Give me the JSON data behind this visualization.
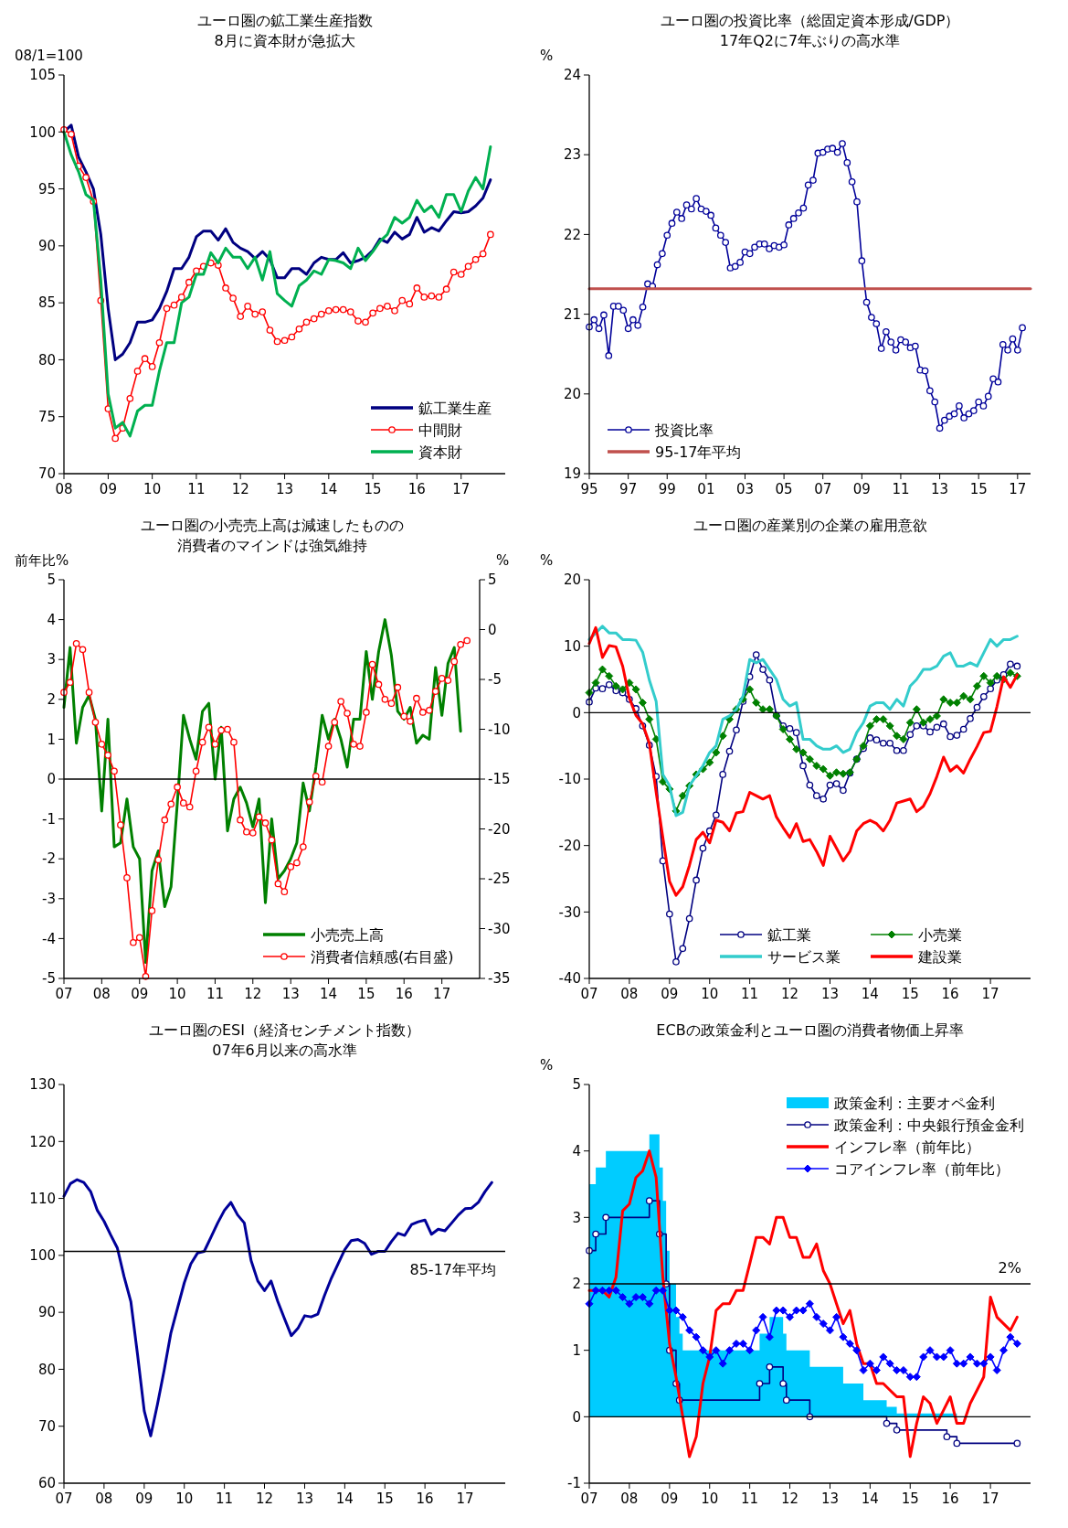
{
  "chart_data": [
    {
      "type": "line",
      "title": "ユーロ圏の鉱工業生産指数",
      "subtitle": "8月に資本財が急拡大",
      "ylabel": "08/1=100",
      "xlim": [
        "2008-01",
        "2018-01"
      ],
      "ylim": [
        70,
        105
      ],
      "yticks": [
        70,
        75,
        80,
        85,
        90,
        95,
        100,
        105
      ],
      "xticks": [
        {
          "value": "2008-01",
          "label": "08"
        },
        {
          "value": "2009-01",
          "label": "09"
        },
        {
          "value": "2010-01",
          "label": "10"
        },
        {
          "value": "2011-01",
          "label": "11"
        },
        {
          "value": "2012-01",
          "label": "12"
        },
        {
          "value": "2013-01",
          "label": "13"
        },
        {
          "value": "2014-01",
          "label": "14"
        },
        {
          "value": "2015-01",
          "label": "15"
        },
        {
          "value": "2016-01",
          "label": "16"
        },
        {
          "value": "2017-01",
          "label": "17"
        }
      ],
      "legend": "bottom right",
      "x": [
        "2008-01",
        "2008-03",
        "2008-05",
        "2008-07",
        "2008-09",
        "2008-11",
        "2009-01",
        "2009-03",
        "2009-05",
        "2009-07",
        "2009-09",
        "2009-11",
        "2010-01",
        "2010-03",
        "2010-05",
        "2010-07",
        "2010-09",
        "2010-11",
        "2011-01",
        "2011-03",
        "2011-05",
        "2011-07",
        "2011-09",
        "2011-11",
        "2012-01",
        "2012-03",
        "2012-05",
        "2012-07",
        "2012-09",
        "2012-11",
        "2013-01",
        "2013-03",
        "2013-05",
        "2013-07",
        "2013-09",
        "2013-11",
        "2014-01",
        "2014-03",
        "2014-05",
        "2014-07",
        "2014-09",
        "2014-11",
        "2015-01",
        "2015-03",
        "2015-05",
        "2015-07",
        "2015-09",
        "2015-11",
        "2016-01",
        "2016-03",
        "2016-05",
        "2016-07",
        "2016-09",
        "2016-11",
        "2017-01",
        "2017-03",
        "2017-05",
        "2017-07",
        "2017-09"
      ],
      "series": [
        {
          "name": "鉱工業生産",
          "type": "line",
          "color": "#000080",
          "values": [
            100,
            100.6,
            97.8,
            96.5,
            95,
            91,
            84.5,
            80,
            80.5,
            81.5,
            83.3,
            83.3,
            83.5,
            84.5,
            86,
            88,
            88,
            89,
            90.8,
            91.3,
            91.3,
            90.5,
            91.5,
            90.3,
            89.8,
            89.5,
            88.9,
            89.5,
            88.8,
            87.2,
            87.2,
            88,
            88,
            87.5,
            88.5,
            89,
            88.8,
            88.8,
            89.4,
            88.5,
            88.7,
            89,
            89.6,
            90.6,
            90.3,
            91.2,
            90.6,
            91,
            92.5,
            91.2,
            91.6,
            91.3,
            92.2,
            93,
            92.9,
            93,
            93.5,
            94.2,
            95.8
          ]
        },
        {
          "name": "中間財",
          "type": "line",
          "color": "#ff0000",
          "marker": "circle",
          "values": [
            100.2,
            99.8,
            97,
            96,
            93.9,
            85.2,
            75.7,
            73.1,
            74,
            76.6,
            79,
            80.1,
            79.4,
            81.5,
            84.5,
            84.8,
            85.5,
            86.8,
            87.8,
            88.2,
            88.5,
            88.3,
            86.3,
            85.4,
            83.8,
            84.7,
            84,
            84.2,
            82.6,
            81.6,
            81.7,
            82,
            82.7,
            83.3,
            83.6,
            84,
            84.3,
            84.4,
            84.4,
            84.2,
            83.4,
            83.3,
            84.1,
            84.5,
            84.7,
            84.3,
            85.2,
            84.9,
            86.3,
            85.5,
            85.6,
            85.5,
            86.2,
            87.7,
            87.5,
            88.2,
            88.8,
            89.3,
            91.0
          ]
        },
        {
          "name": "資本財",
          "type": "line",
          "color": "#00b050",
          "values": [
            100,
            98,
            96.5,
            94.5,
            94,
            87,
            77,
            74,
            74.5,
            73.3,
            75.5,
            76,
            76,
            79,
            81.5,
            81.5,
            85,
            85.5,
            87.5,
            87.5,
            89.4,
            88.5,
            89.8,
            89,
            89,
            88,
            89,
            87,
            89.5,
            85.8,
            85.2,
            84.7,
            86.5,
            87,
            87.8,
            87.5,
            88.8,
            88.7,
            88.5,
            88,
            89.8,
            88.7,
            89.5,
            90.4,
            91,
            92.5,
            92,
            92.5,
            94,
            93,
            93.5,
            92.5,
            94.5,
            94.5,
            93,
            94.8,
            96,
            95,
            98.7
          ]
        }
      ]
    },
    {
      "type": "line",
      "title": "ユーロ圏の投資比率（総固定資本形成/GDP）",
      "subtitle": "17年Q2に7年ぶりの高水準",
      "ylabel": "%",
      "xlim": [
        "1995-01",
        "2017-09"
      ],
      "ylim": [
        19,
        24
      ],
      "yticks": [
        19,
        20,
        21,
        22,
        23,
        24
      ],
      "xticks": [
        {
          "value": "1995-01",
          "label": "95"
        },
        {
          "value": "1997-01",
          "label": "97"
        },
        {
          "value": "1999-01",
          "label": "99"
        },
        {
          "value": "2001-01",
          "label": "01"
        },
        {
          "value": "2003-01",
          "label": "03"
        },
        {
          "value": "2005-01",
          "label": "05"
        },
        {
          "value": "2007-01",
          "label": "07"
        },
        {
          "value": "2009-01",
          "label": "09"
        },
        {
          "value": "2011-01",
          "label": "11"
        },
        {
          "value": "2013-01",
          "label": "13"
        },
        {
          "value": "2015-01",
          "label": "15"
        },
        {
          "value": "2017-01",
          "label": "17"
        }
      ],
      "legend": "bottom left",
      "series": [
        {
          "name": "投資比率",
          "type": "line",
          "color": "#000099",
          "marker": "circle",
          "x": [
            "1995-01",
            "1995-04",
            "1995-07",
            "1995-10",
            "1996-01",
            "1996-04",
            "1996-07",
            "1996-10",
            "1997-01",
            "1997-04",
            "1997-07",
            "1997-10",
            "1998-01",
            "1998-04",
            "1998-07",
            "1998-10",
            "1999-01",
            "1999-04",
            "1999-07",
            "1999-10",
            "2000-01",
            "2000-04",
            "2000-07",
            "2000-10",
            "2001-01",
            "2001-04",
            "2001-07",
            "2001-10",
            "2002-01",
            "2002-04",
            "2002-07",
            "2002-10",
            "2003-01",
            "2003-04",
            "2003-07",
            "2003-10",
            "2004-01",
            "2004-04",
            "2004-07",
            "2004-10",
            "2005-01",
            "2005-04",
            "2005-07",
            "2005-10",
            "2006-01",
            "2006-04",
            "2006-07",
            "2006-10",
            "2007-01",
            "2007-04",
            "2007-07",
            "2007-10",
            "2008-01",
            "2008-04",
            "2008-07",
            "2008-10",
            "2009-01",
            "2009-04",
            "2009-07",
            "2009-10",
            "2010-01",
            "2010-04",
            "2010-07",
            "2010-10",
            "2011-01",
            "2011-04",
            "2011-07",
            "2011-10",
            "2012-01",
            "2012-04",
            "2012-07",
            "2012-10",
            "2013-01",
            "2013-04",
            "2013-07",
            "2013-10",
            "2014-01",
            "2014-04",
            "2014-07",
            "2014-10",
            "2015-01",
            "2015-04",
            "2015-07",
            "2015-10",
            "2016-01",
            "2016-04",
            "2016-07",
            "2016-10",
            "2017-01",
            "2017-04"
          ],
          "values": [
            20.84,
            20.93,
            20.82,
            20.99,
            20.48,
            21.1,
            21.1,
            21.05,
            20.82,
            20.93,
            20.86,
            21.09,
            21.38,
            21.35,
            21.62,
            21.76,
            21.99,
            22.14,
            22.28,
            22.2,
            22.37,
            22.32,
            22.45,
            22.32,
            22.29,
            22.24,
            22.08,
            21.99,
            21.9,
            21.58,
            21.6,
            21.65,
            21.78,
            21.76,
            21.84,
            21.88,
            21.88,
            21.82,
            21.86,
            21.84,
            21.87,
            22.12,
            22.2,
            22.27,
            22.33,
            22.62,
            22.68,
            23.02,
            23.03,
            23.07,
            23.08,
            23.03,
            23.14,
            22.9,
            22.66,
            22.41,
            21.67,
            21.15,
            20.96,
            20.88,
            20.57,
            20.78,
            20.65,
            20.55,
            20.68,
            20.65,
            20.58,
            20.6,
            20.3,
            20.29,
            20.04,
            19.9,
            19.57,
            19.67,
            19.72,
            19.75,
            19.85,
            19.7,
            19.75,
            19.79,
            19.9,
            19.85,
            19.97,
            20.19,
            20.15,
            20.62,
            20.55,
            20.69,
            20.55,
            20.83
          ]
        },
        {
          "name": "95-17年平均",
          "type": "line",
          "color": "#c0504d",
          "x": [
            "1995-01",
            "2017-09"
          ],
          "values": [
            21.32,
            21.32
          ]
        }
      ]
    },
    {
      "type": "line",
      "title": "ユーロ圏の小売売上高は減速したものの",
      "subtitle": "消費者のマインドは強気維持",
      "ylabel": "前年比%",
      "y2label": "%",
      "xlim": [
        "2007-01",
        "2018-01"
      ],
      "ylim": [
        -5,
        5
      ],
      "yticks": [
        -5,
        -4,
        -3,
        -2,
        -1,
        0,
        1,
        2,
        3,
        4,
        5
      ],
      "y2lim": [
        -35,
        5
      ],
      "y2ticks": [
        -35,
        -30,
        -25,
        -20,
        -15,
        -10,
        -5,
        0,
        5
      ],
      "xticks": [
        {
          "value": "2007-01",
          "label": "07"
        },
        {
          "value": "2008-01",
          "label": "08"
        },
        {
          "value": "2009-01",
          "label": "09"
        },
        {
          "value": "2010-01",
          "label": "10"
        },
        {
          "value": "2011-01",
          "label": "11"
        },
        {
          "value": "2012-01",
          "label": "12"
        },
        {
          "value": "2013-01",
          "label": "13"
        },
        {
          "value": "2014-01",
          "label": "14"
        },
        {
          "value": "2015-01",
          "label": "15"
        },
        {
          "value": "2016-01",
          "label": "16"
        },
        {
          "value": "2017-01",
          "label": "17"
        }
      ],
      "legend": "bottom right",
      "ref_lines": [
        {
          "axis": "y",
          "value": 0,
          "color": "#000000"
        }
      ],
      "x": [
        "2007-01",
        "2007-03",
        "2007-05",
        "2007-07",
        "2007-09",
        "2007-11",
        "2008-01",
        "2008-03",
        "2008-05",
        "2008-07",
        "2008-09",
        "2008-11",
        "2009-01",
        "2009-03",
        "2009-05",
        "2009-07",
        "2009-09",
        "2009-11",
        "2010-01",
        "2010-03",
        "2010-05",
        "2010-07",
        "2010-09",
        "2010-11",
        "2011-01",
        "2011-03",
        "2011-05",
        "2011-07",
        "2011-09",
        "2011-11",
        "2012-01",
        "2012-03",
        "2012-05",
        "2012-07",
        "2012-09",
        "2012-11",
        "2013-01",
        "2013-03",
        "2013-05",
        "2013-07",
        "2013-09",
        "2013-11",
        "2014-01",
        "2014-03",
        "2014-05",
        "2014-07",
        "2014-09",
        "2014-11",
        "2015-01",
        "2015-03",
        "2015-05",
        "2015-07",
        "2015-09",
        "2015-11",
        "2016-01",
        "2016-03",
        "2016-05",
        "2016-07",
        "2016-09",
        "2016-11",
        "2017-01",
        "2017-03",
        "2017-05",
        "2017-07",
        "2017-09"
      ],
      "series": [
        {
          "name": "小売売上高",
          "type": "line",
          "color": "#008000",
          "values": [
            1.8,
            3.3,
            0.9,
            1.8,
            2.1,
            1.5,
            -0.8,
            1.5,
            -1.7,
            -1.6,
            -0.5,
            -1.7,
            -2,
            -4.6,
            -2.3,
            -1.8,
            -3.2,
            -2.7,
            -0.6,
            1.6,
            1,
            0.5,
            1.7,
            1.9,
            0,
            1.3,
            -1.3,
            -0.5,
            -0.2,
            -0.6,
            -1.2,
            -0.5,
            -3.1,
            -1,
            -2.5,
            -2.3,
            -2,
            -1.6,
            -0.1,
            -0.8,
            0.3,
            1.6,
            1,
            1.5,
            1,
            0.3,
            1.5,
            1.5,
            3.2,
            2,
            3.2,
            4,
            3.1,
            1.7,
            1.5,
            1.8,
            0.9,
            1.1,
            1,
            2.8,
            1.6,
            2.9,
            3.3,
            1.2,
            null
          ]
        },
        {
          "name": "消費者信頼感(右目盛)",
          "type": "line",
          "axis": "y2",
          "color": "#ff0000",
          "marker": "circle",
          "values": [
            -6.3,
            -5.3,
            -1.4,
            -2,
            -6.3,
            -9.3,
            -11.5,
            -12.6,
            -14.2,
            -19.6,
            -24.9,
            -31.4,
            -30.9,
            -34.8,
            -28.2,
            -23.1,
            -19.1,
            -17.5,
            -15.8,
            -17.4,
            -17.8,
            -14.2,
            -11.3,
            -9.8,
            -11.5,
            -10.1,
            -10,
            -11.3,
            -19.1,
            -20.3,
            -20.4,
            -18.8,
            -19.4,
            -21.1,
            -25.5,
            -26.3,
            -23.8,
            -23.4,
            -21.8,
            -17.3,
            -14.7,
            -15.3,
            -11.7,
            -9.3,
            -7.2,
            -8.4,
            -11.5,
            -11.7,
            -8.3,
            -3.5,
            -5.5,
            -7,
            -7.4,
            -5.8,
            -8.7,
            -9.2,
            -6.9,
            -8.3,
            -8.1,
            -6.2,
            -4.9,
            -5.1,
            -3.2,
            -1.5,
            -1.1
          ]
        }
      ]
    },
    {
      "type": "line",
      "title": "ユーロ圏の産業別の企業の雇用意欲",
      "ylabel": "%",
      "xlim": [
        "2007-01",
        "2018-01"
      ],
      "ylim": [
        -40,
        20
      ],
      "yticks": [
        -40,
        -30,
        -20,
        -10,
        0,
        10,
        20
      ],
      "xticks": [
        {
          "value": "2007-01",
          "label": "07"
        },
        {
          "value": "2008-01",
          "label": "08"
        },
        {
          "value": "2009-01",
          "label": "09"
        },
        {
          "value": "2010-01",
          "label": "10"
        },
        {
          "value": "2011-01",
          "label": "11"
        },
        {
          "value": "2012-01",
          "label": "12"
        },
        {
          "value": "2013-01",
          "label": "13"
        },
        {
          "value": "2014-01",
          "label": "14"
        },
        {
          "value": "2015-01",
          "label": "15"
        },
        {
          "value": "2016-01",
          "label": "16"
        },
        {
          "value": "2017-01",
          "label": "17"
        }
      ],
      "legend": "bottom right",
      "ref_lines": [
        {
          "axis": "y",
          "value": 0,
          "color": "#000000"
        }
      ],
      "x": [
        "2007-01",
        "2007-03",
        "2007-05",
        "2007-07",
        "2007-09",
        "2007-11",
        "2008-01",
        "2008-03",
        "2008-05",
        "2008-07",
        "2008-09",
        "2008-11",
        "2009-01",
        "2009-03",
        "2009-05",
        "2009-07",
        "2009-09",
        "2009-11",
        "2010-01",
        "2010-03",
        "2010-05",
        "2010-07",
        "2010-09",
        "2010-11",
        "2011-01",
        "2011-03",
        "2011-05",
        "2011-07",
        "2011-09",
        "2011-11",
        "2012-01",
        "2012-03",
        "2012-05",
        "2012-07",
        "2012-09",
        "2012-11",
        "2013-01",
        "2013-03",
        "2013-05",
        "2013-07",
        "2013-09",
        "2013-11",
        "2014-01",
        "2014-03",
        "2014-05",
        "2014-07",
        "2014-09",
        "2014-11",
        "2015-01",
        "2015-03",
        "2015-05",
        "2015-07",
        "2015-09",
        "2015-11",
        "2016-01",
        "2016-03",
        "2016-05",
        "2016-07",
        "2016-09",
        "2016-11",
        "2017-01",
        "2017-03",
        "2017-05",
        "2017-07",
        "2017-09"
      ],
      "series": [
        {
          "name": "鉱工業",
          "type": "line",
          "color": "#000080",
          "marker": "circle",
          "values": [
            1.6,
            3.7,
            3.6,
            4.2,
            3.3,
            3,
            2,
            0.6,
            -2,
            -4.9,
            -9.6,
            -22.3,
            -30.3,
            -37.5,
            -35.5,
            -31,
            -25.2,
            -20.4,
            -17.8,
            -15.4,
            -9.3,
            -5.8,
            -2.6,
            1.7,
            5.4,
            8.7,
            6.5,
            4.9,
            -0.4,
            -2,
            -2.4,
            -3,
            -8,
            -10.9,
            -12.5,
            -13,
            -10.9,
            -10.7,
            -11.7,
            -9.1,
            -7,
            -5.4,
            -3.8,
            -4.1,
            -4.6,
            -4.6,
            -5.7,
            -5.7,
            -3.3,
            -2,
            -2,
            -2.9,
            -2.2,
            -1.7,
            -3.6,
            -3.4,
            -2.5,
            -0.9,
            0.8,
            2.4,
            3.6,
            4.9,
            5.7,
            7.3,
            7
          ]
        },
        {
          "name": "小売業",
          "type": "line",
          "color": "#008000",
          "marker": "diamond",
          "values": [
            3,
            4.5,
            6.5,
            5.5,
            4,
            3.5,
            4.5,
            3.5,
            1.5,
            -1,
            -4,
            -10.4,
            -11.5,
            -14.8,
            -12.5,
            -11,
            -9.3,
            -8.5,
            -7.5,
            -6,
            -3.5,
            -1,
            0.5,
            2,
            3.5,
            1.5,
            0.5,
            0.5,
            -0.5,
            -2.5,
            -4,
            -5.5,
            -6,
            -7,
            -8,
            -8.5,
            -9.5,
            -9,
            -9.2,
            -9,
            -7,
            -5,
            -2,
            -1,
            -1,
            -2,
            -3.5,
            -4,
            -1.5,
            0.5,
            -1.5,
            -1,
            -0.5,
            2,
            1.5,
            1.5,
            2.5,
            2,
            4,
            5.5,
            4.5,
            5.5,
            5,
            6,
            5.5
          ]
        },
        {
          "name": "サービス業",
          "type": "line",
          "color": "#33cccc",
          "values": [
            11,
            12,
            13,
            12,
            12,
            11,
            11,
            10.9,
            9.1,
            4.9,
            1.7,
            -9.3,
            -11,
            -15.5,
            -15,
            -11,
            -9.5,
            -8,
            -6,
            -5,
            -1,
            -0.5,
            0.5,
            2.5,
            8,
            7.5,
            8,
            6.5,
            5,
            2,
            1,
            1.5,
            -4,
            -4,
            -5,
            -5.5,
            -5.5,
            -5,
            -6,
            -5.5,
            -3,
            -1.5,
            1,
            1.5,
            1.5,
            0.5,
            2,
            1,
            4,
            5,
            6.5,
            6.5,
            7,
            8.5,
            9,
            7,
            7,
            7.5,
            7,
            9,
            11,
            10,
            11,
            11,
            11.5
          ]
        },
        {
          "name": "建設業",
          "type": "line",
          "color": "#ff0000",
          "values": [
            10.4,
            12.8,
            8.3,
            10.1,
            9.9,
            7,
            2.2,
            -0.4,
            -1.7,
            -4.6,
            -12,
            -18.8,
            -25.4,
            -27.5,
            -26.2,
            -23,
            -19.1,
            -18,
            -19.6,
            -16.2,
            -16.5,
            -17.8,
            -15.1,
            -14.9,
            -12,
            -12.5,
            -13,
            -12.5,
            -15.7,
            -17.3,
            -18.8,
            -16.7,
            -19.4,
            -19.1,
            -20.9,
            -23,
            -18.6,
            -20.4,
            -22.3,
            -20.9,
            -17.8,
            -16.7,
            -16.2,
            -16.7,
            -17.8,
            -16.2,
            -13.6,
            -13.3,
            -13,
            -14.9,
            -14.1,
            -12.2,
            -9.6,
            -6.7,
            -8.8,
            -8,
            -9.1,
            -7,
            -5.1,
            -3,
            -2.8,
            0.9,
            5.4,
            3.8,
            5.7
          ]
        }
      ]
    },
    {
      "type": "line",
      "title": "ユーロ圏のESI（経済センチメント指数）",
      "subtitle": "07年6月以来の高水準",
      "xlim": [
        "2007-01",
        "2018-01"
      ],
      "ylim": [
        60,
        130
      ],
      "yticks": [
        60,
        70,
        80,
        90,
        100,
        110,
        120,
        130
      ],
      "xticks": [
        {
          "value": "2007-01",
          "label": "07"
        },
        {
          "value": "2008-01",
          "label": "08"
        },
        {
          "value": "2009-01",
          "label": "09"
        },
        {
          "value": "2010-01",
          "label": "10"
        },
        {
          "value": "2011-01",
          "label": "11"
        },
        {
          "value": "2012-01",
          "label": "12"
        },
        {
          "value": "2013-01",
          "label": "13"
        },
        {
          "value": "2014-01",
          "label": "14"
        },
        {
          "value": "2015-01",
          "label": "15"
        },
        {
          "value": "2016-01",
          "label": "16"
        },
        {
          "value": "2017-01",
          "label": "17"
        }
      ],
      "ref_lines": [
        {
          "axis": "y",
          "value": 100.7,
          "label": "85-17年平均",
          "color": "#000000"
        }
      ],
      "x": [
        "2007-01",
        "2007-03",
        "2007-05",
        "2007-07",
        "2007-09",
        "2007-11",
        "2008-01",
        "2008-03",
        "2008-05",
        "2008-07",
        "2008-09",
        "2008-11",
        "2009-01",
        "2009-03",
        "2009-05",
        "2009-07",
        "2009-09",
        "2009-11",
        "2010-01",
        "2010-03",
        "2010-05",
        "2010-07",
        "2010-09",
        "2010-11",
        "2011-01",
        "2011-03",
        "2011-05",
        "2011-07",
        "2011-09",
        "2011-11",
        "2012-01",
        "2012-03",
        "2012-05",
        "2012-07",
        "2012-09",
        "2012-11",
        "2013-01",
        "2013-03",
        "2013-05",
        "2013-07",
        "2013-09",
        "2013-11",
        "2014-01",
        "2014-03",
        "2014-05",
        "2014-07",
        "2014-09",
        "2014-11",
        "2015-01",
        "2015-03",
        "2015-05",
        "2015-07",
        "2015-09",
        "2015-11",
        "2016-01",
        "2016-03",
        "2016-05",
        "2016-07",
        "2016-09",
        "2016-11",
        "2017-01",
        "2017-03",
        "2017-05",
        "2017-07",
        "2017-09"
      ],
      "series": [
        {
          "type": "line",
          "color": "#000099",
          "values": [
            110.4,
            112.6,
            113.3,
            112.8,
            111.2,
            107.9,
            106,
            103.6,
            101.3,
            96.3,
            91.9,
            82.6,
            72.7,
            68.3,
            73.8,
            79.8,
            86.4,
            90.8,
            95.2,
            98.5,
            100.4,
            100.7,
            103.2,
            105.7,
            107.9,
            109.3,
            107.1,
            105.7,
            99.1,
            95.5,
            93.8,
            95.5,
            91.9,
            88.9,
            85.9,
            87.2,
            89.4,
            89.2,
            89.7,
            93,
            96,
            98.5,
            101,
            102.6,
            102.8,
            102.1,
            100.2,
            100.7,
            100.7,
            102.4,
            103.9,
            103.5,
            105.4,
            105.9,
            106.2,
            103.7,
            104.6,
            104.3,
            105.7,
            107.1,
            108.2,
            108.3,
            109.3,
            111.2,
            112.8
          ]
        }
      ]
    },
    {
      "type": "line",
      "title": "ECBの政策金利とユーロ圏の消費者物価上昇率",
      "ylabel": "%",
      "xlim": [
        "2007-01",
        "2018-01"
      ],
      "ylim": [
        -1,
        5
      ],
      "yticks": [
        -1,
        0,
        1,
        2,
        3,
        4,
        5
      ],
      "xticks": [
        {
          "value": "2007-01",
          "label": "07"
        },
        {
          "value": "2008-01",
          "label": "08"
        },
        {
          "value": "2009-01",
          "label": "09"
        },
        {
          "value": "2010-01",
          "label": "10"
        },
        {
          "value": "2011-01",
          "label": "11"
        },
        {
          "value": "2012-01",
          "label": "12"
        },
        {
          "value": "2013-01",
          "label": "13"
        },
        {
          "value": "2014-01",
          "label": "14"
        },
        {
          "value": "2015-01",
          "label": "15"
        },
        {
          "value": "2016-01",
          "label": "16"
        },
        {
          "value": "2017-01",
          "label": "17"
        }
      ],
      "legend": "top right",
      "ref_lines": [
        {
          "axis": "y",
          "value": 0,
          "color": "#000000"
        },
        {
          "axis": "y",
          "value": 2,
          "label": "2%",
          "color": "#000000"
        }
      ],
      "x": [
        "2007-01",
        "2007-03",
        "2007-05",
        "2007-07",
        "2007-09",
        "2007-11",
        "2008-01",
        "2008-03",
        "2008-05",
        "2008-07",
        "2008-09",
        "2008-11",
        "2009-01",
        "2009-03",
        "2009-05",
        "2009-07",
        "2009-09",
        "2009-11",
        "2010-01",
        "2010-03",
        "2010-05",
        "2010-07",
        "2010-09",
        "2010-11",
        "2011-01",
        "2011-03",
        "2011-05",
        "2011-07",
        "2011-09",
        "2011-11",
        "2012-01",
        "2012-03",
        "2012-05",
        "2012-07",
        "2012-09",
        "2012-11",
        "2013-01",
        "2013-03",
        "2013-05",
        "2013-07",
        "2013-09",
        "2013-11",
        "2014-01",
        "2014-03",
        "2014-05",
        "2014-07",
        "2014-09",
        "2014-11",
        "2015-01",
        "2015-03",
        "2015-05",
        "2015-07",
        "2015-09",
        "2015-11",
        "2016-01",
        "2016-03",
        "2016-05",
        "2016-07",
        "2016-09",
        "2016-11",
        "2017-01",
        "2017-03",
        "2017-05",
        "2017-07",
        "2017-09"
      ],
      "series": [
        {
          "name": "政策金利：主要オペ金利",
          "type": "area",
          "color": "#00ccff",
          "x": [
            "2007-01",
            "2007-03",
            "2007-06",
            "2008-07",
            "2008-10",
            "2008-11",
            "2008-12",
            "2009-01",
            "2009-03",
            "2009-04",
            "2009-05",
            "2011-04",
            "2011-07",
            "2011-11",
            "2011-12",
            "2012-07",
            "2013-05",
            "2013-11",
            "2014-06",
            "2014-09",
            "2016-03",
            "2017-09"
          ],
          "values": [
            3.5,
            3.75,
            4,
            4.25,
            3.75,
            3.25,
            2.5,
            2,
            1.5,
            1.25,
            1,
            1.25,
            1.5,
            1.25,
            1,
            0.75,
            0.5,
            0.25,
            0.15,
            0.05,
            0,
            0
          ]
        },
        {
          "name": "政策金利：中央銀行預金金利",
          "type": "step",
          "color": "#000080",
          "marker": "circle",
          "x": [
            "2007-01",
            "2007-03",
            "2007-06",
            "2008-07",
            "2008-10",
            "2008-12",
            "2009-01",
            "2009-03",
            "2009-04",
            "2011-04",
            "2011-07",
            "2011-11",
            "2011-12",
            "2012-07",
            "2014-06",
            "2014-09",
            "2015-12",
            "2016-03",
            "2017-09"
          ],
          "values": [
            2.5,
            2.75,
            3,
            3.25,
            2.75,
            2,
            1,
            0.5,
            0.25,
            0.5,
            0.75,
            0.5,
            0.25,
            0,
            -0.1,
            -0.2,
            -0.3,
            -0.4,
            -0.4
          ]
        },
        {
          "name": "インフレ率（前年比）",
          "type": "line",
          "color": "#ff0000",
          "values": [
            1.9,
            1.9,
            1.9,
            1.8,
            2.1,
            3.1,
            3.2,
            3.6,
            3.7,
            4,
            3.6,
            2.1,
            1.1,
            0.6,
            0,
            -0.6,
            -0.3,
            0.5,
            0.9,
            1.6,
            1.7,
            1.7,
            1.9,
            1.9,
            2.3,
            2.7,
            2.7,
            2.6,
            3,
            3,
            2.7,
            2.7,
            2.4,
            2.4,
            2.6,
            2.2,
            2,
            1.7,
            1.4,
            1.6,
            1.1,
            0.8,
            0.8,
            0.5,
            0.5,
            0.4,
            0.3,
            0.3,
            -0.6,
            -0.1,
            0.3,
            0.2,
            -0.1,
            0.1,
            0.3,
            -0.1,
            -0.1,
            0.2,
            0.4,
            0.6,
            1.8,
            1.5,
            1.4,
            1.3,
            1.5
          ]
        },
        {
          "name": "コアインフレ率（前年比）",
          "type": "line",
          "color": "#0000ff",
          "marker": "diamond",
          "values": [
            1.7,
            1.9,
            1.9,
            1.9,
            1.9,
            1.8,
            1.7,
            1.8,
            1.8,
            1.7,
            1.9,
            1.9,
            1.6,
            1.6,
            1.5,
            1.3,
            1.2,
            1,
            0.9,
            1,
            0.8,
            1,
            1.1,
            1.1,
            1,
            1.3,
            1.5,
            1.2,
            1.6,
            1.6,
            1.5,
            1.6,
            1.6,
            1.7,
            1.5,
            1.4,
            1.3,
            1.5,
            1.2,
            1.1,
            1,
            0.7,
            0.8,
            0.7,
            0.9,
            0.8,
            0.7,
            0.7,
            0.6,
            0.6,
            0.9,
            1,
            0.9,
            0.9,
            1,
            0.8,
            0.8,
            0.9,
            0.8,
            0.8,
            0.9,
            0.7,
            1,
            1.2,
            1.1
          ]
        }
      ]
    }
  ]
}
